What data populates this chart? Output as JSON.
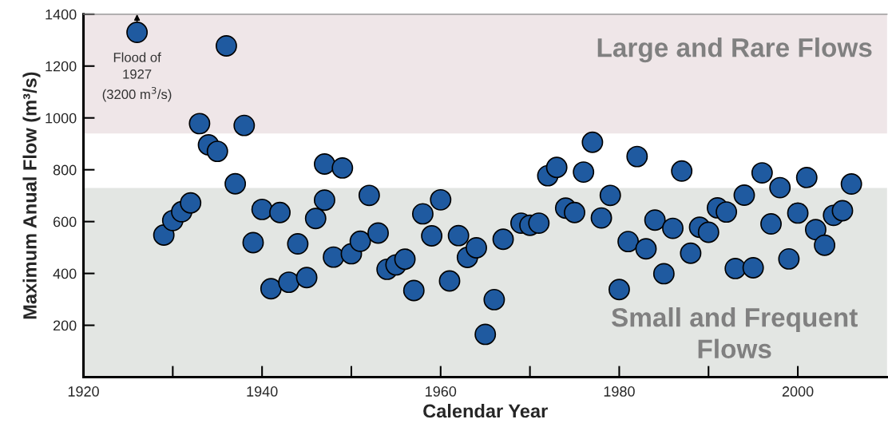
{
  "chart_data": {
    "type": "scatter",
    "xlabel": "Calendar Year",
    "ylabel": "Maximum Anual Flow (m³/s)",
    "x": [
      1926,
      1929,
      1930,
      1931,
      1932,
      1933,
      1934,
      1935,
      1936,
      1937,
      1938,
      1939,
      1940,
      1941,
      1942,
      1943,
      1944,
      1945,
      1946,
      1947,
      1947,
      1948,
      1949,
      1950,
      1951,
      1952,
      1953,
      1954,
      1955,
      1956,
      1957,
      1958,
      1959,
      1960,
      1961,
      1962,
      1963,
      1964,
      1965,
      1966,
      1967,
      1969,
      1970,
      1971,
      1972,
      1973,
      1974,
      1975,
      1976,
      1977,
      1978,
      1979,
      1980,
      1981,
      1982,
      1983,
      1984,
      1985,
      1986,
      1987,
      1988,
      1989,
      1990,
      1991,
      1992,
      1993,
      1994,
      1995,
      1996,
      1997,
      1998,
      1999,
      2000,
      2001,
      2002,
      2003,
      2004,
      2005,
      2006
    ],
    "series": [
      {
        "color": "#1f5aa0",
        "values": [
          1330,
          548,
          604,
          638,
          672,
          978,
          896,
          871,
          1278,
          746,
          971,
          519,
          647,
          341,
          635,
          366,
          514,
          384,
          612,
          683,
          822,
          463,
          807,
          476,
          524,
          701,
          556,
          416,
          433,
          455,
          334,
          630,
          545,
          684,
          371,
          546,
          462,
          499,
          165,
          299,
          532,
          594,
          586,
          594,
          777,
          809,
          652,
          635,
          791,
          906,
          614,
          701,
          338,
          523,
          851,
          495,
          606,
          399,
          574,
          795,
          478,
          578,
          559,
          653,
          637,
          419,
          702,
          422,
          788,
          591,
          731,
          456,
          633,
          770,
          569,
          509,
          624,
          642,
          745
        ]
      }
    ],
    "marker": "circle",
    "xlim": [
      1920,
      2010
    ],
    "xticks": [
      1920,
      {
        "value": 1930,
        "label": null
      },
      1940,
      {
        "value": 1950,
        "label": null
      },
      1960,
      {
        "value": 1970,
        "label": null
      },
      1980,
      {
        "value": 1990,
        "label": null
      },
      2000
    ],
    "ylim": [
      0,
      1400
    ],
    "yticks": [
      200,
      400,
      600,
      800,
      1000,
      1200,
      1400
    ],
    "bands": [
      {
        "axis": "y",
        "from": 940,
        "to": 1400,
        "label": "Large and Rare Flows",
        "color": "#efe6e8"
      },
      {
        "axis": "y",
        "from": 0,
        "to": 730,
        "label": "Small and Frequent\nFlows",
        "color": "#e3e6e3"
      }
    ],
    "annotations": [
      {
        "text": "Flood of\n1927\n(3200 m$^{3}$/s)",
        "x": 1926,
        "y": 1330
      }
    ],
    "grid": false,
    "legend": false
  }
}
